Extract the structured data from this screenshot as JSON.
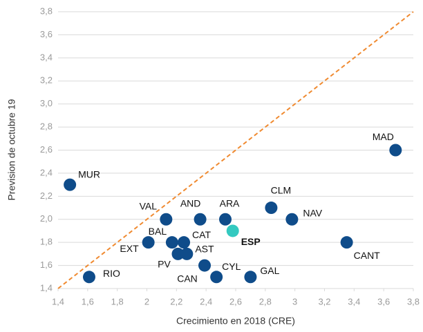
{
  "chart_data": {
    "type": "scatter",
    "x_label": "Crecimiento en 2018 (CRE)",
    "y_label": "Prevision de octubre 19",
    "xlim": [
      1.4,
      3.8
    ],
    "ylim": [
      1.4,
      3.8
    ],
    "xticks": [
      {
        "value": 1.4,
        "label": "1,4"
      },
      {
        "value": 1.6,
        "label": "1,6"
      },
      {
        "value": 1.8,
        "label": "1,8"
      },
      2,
      {
        "value": 2.2,
        "label": "2,2"
      },
      {
        "value": 2.4,
        "label": "2,4"
      },
      {
        "value": 2.6,
        "label": "2,6"
      },
      {
        "value": 2.8,
        "label": "2,8"
      },
      3,
      {
        "value": 3.2,
        "label": "3,2"
      },
      {
        "value": 3.4,
        "label": "3,4"
      },
      {
        "value": 3.6,
        "label": "3,6"
      },
      {
        "value": 3.8,
        "label": "3,8"
      }
    ],
    "yticks": [
      {
        "value": 1.4,
        "label": "1,4"
      },
      {
        "value": 1.6,
        "label": "1,6"
      },
      {
        "value": 1.8,
        "label": "1,8"
      },
      {
        "value": 2.0,
        "label": "2,0"
      },
      {
        "value": 2.2,
        "label": "2,2"
      },
      {
        "value": 2.4,
        "label": "2,4"
      },
      {
        "value": 2.6,
        "label": "2,6"
      },
      {
        "value": 2.8,
        "label": "2,8"
      },
      {
        "value": 3.0,
        "label": "3,0"
      },
      {
        "value": 3.2,
        "label": "3,2"
      },
      {
        "value": 3.4,
        "label": "3,4"
      },
      {
        "value": 3.6,
        "label": "3,6"
      },
      {
        "value": 3.8,
        "label": "3,8"
      }
    ],
    "grid": true,
    "diagonal_color": "#f08a30",
    "series": [
      {
        "color": "#0f4c8a",
        "labels": [
          "MAD",
          "MUR",
          "CLM",
          "NAV",
          "ARA",
          "AND",
          "VAL",
          "CANT",
          "BAL",
          "EXT",
          "CAT",
          "PV",
          "AST",
          "CAN",
          "CYL",
          "GAL",
          "RIO"
        ],
        "x": [
          3.68,
          1.48,
          2.84,
          2.98,
          2.53,
          2.36,
          2.13,
          3.35,
          2.17,
          2.01,
          2.25,
          2.21,
          2.27,
          2.39,
          2.47,
          2.7,
          1.61
        ],
        "values": [
          2.6,
          2.3,
          2.1,
          2.0,
          2.0,
          2.0,
          2.0,
          1.8,
          1.8,
          1.8,
          1.8,
          1.7,
          1.7,
          1.6,
          1.5,
          1.5,
          1.5
        ]
      },
      {
        "color": "#33c9c0",
        "bold": true,
        "labels": [
          "ESP"
        ],
        "x": [
          2.58
        ],
        "values": [
          1.9
        ]
      }
    ]
  }
}
